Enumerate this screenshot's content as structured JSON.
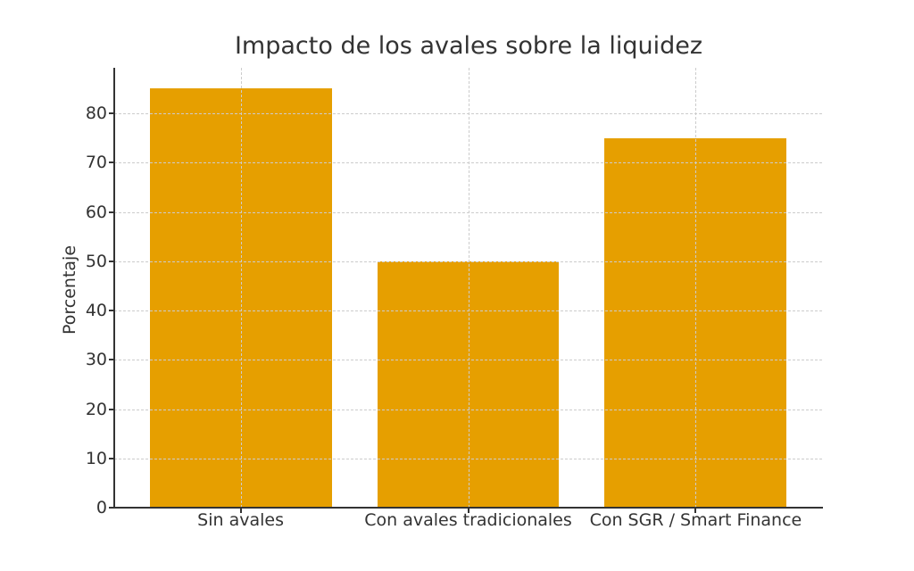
{
  "chart_data": {
    "type": "bar",
    "title": "Impacto de los avales sobre la liquidez",
    "xlabel": "",
    "ylabel": "Porcentaje",
    "categories": [
      "Sin avales",
      "Con avales tradicionales",
      "Con SGR / Smart Finance"
    ],
    "values": [
      85,
      50,
      75
    ],
    "ylim": [
      0,
      89.25
    ],
    "yticks": [
      0,
      10,
      20,
      30,
      40,
      50,
      60,
      70,
      80
    ],
    "grid": true,
    "legend": null,
    "bar_color": "#E69F00"
  }
}
